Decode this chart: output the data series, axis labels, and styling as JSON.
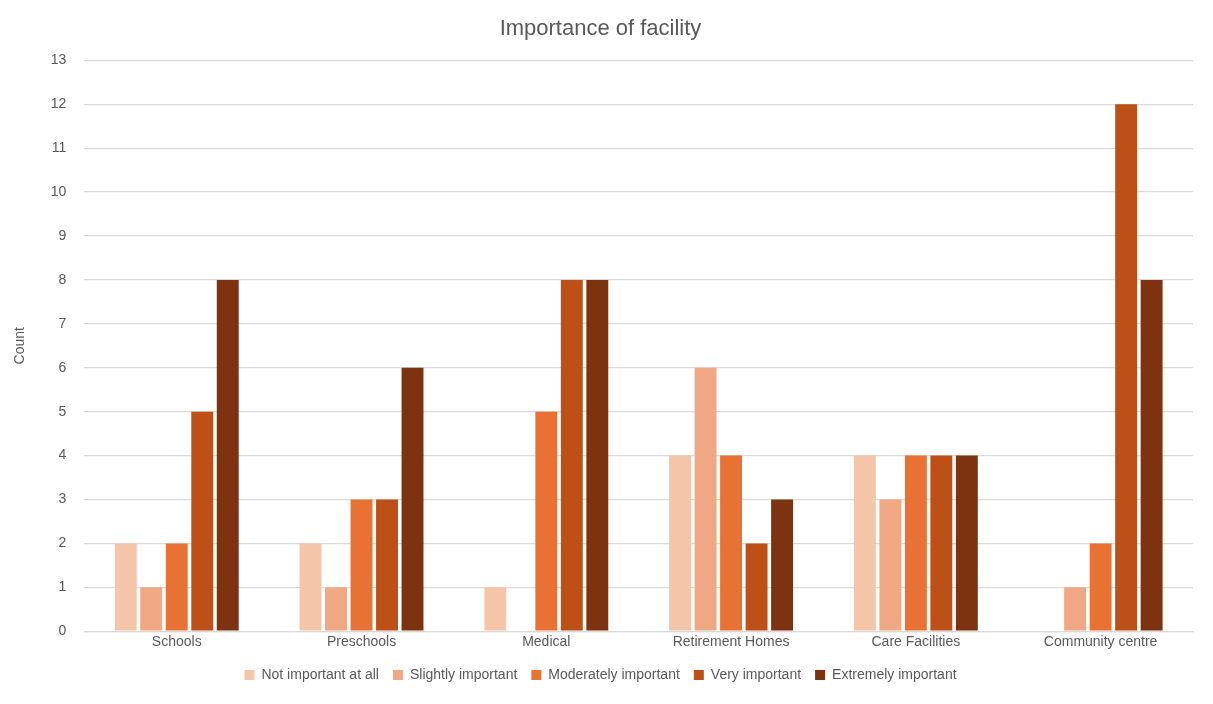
{
  "chart_data": {
    "type": "bar",
    "title": "Importance of facility",
    "ylabel": "Count",
    "categories": [
      "Schools",
      "Preschools",
      "Medical",
      "Retirement Homes",
      "Care Facilities",
      "Community centre"
    ],
    "series": [
      {
        "name": "Not important at all",
        "color": "#f4c5a9",
        "values": [
          2,
          2,
          1,
          4,
          4,
          0
        ]
      },
      {
        "name": "Slightly important",
        "color": "#efa883",
        "values": [
          1,
          1,
          0,
          6,
          3,
          1
        ]
      },
      {
        "name": "Moderately important",
        "color": "#e87134",
        "values": [
          2,
          3,
          5,
          4,
          4,
          2
        ]
      },
      {
        "name": "Very important",
        "color": "#bd5016",
        "values": [
          5,
          3,
          8,
          2,
          4,
          12
        ]
      },
      {
        "name": "Extremely important",
        "color": "#7e3310",
        "values": [
          8,
          6,
          8,
          3,
          4,
          8
        ]
      }
    ],
    "ylim": [
      0,
      13
    ],
    "yticks": [
      0,
      1,
      2,
      3,
      4,
      5,
      6,
      7,
      8,
      9,
      10,
      11,
      12,
      13
    ],
    "grid": "y",
    "legend": "bottom"
  }
}
